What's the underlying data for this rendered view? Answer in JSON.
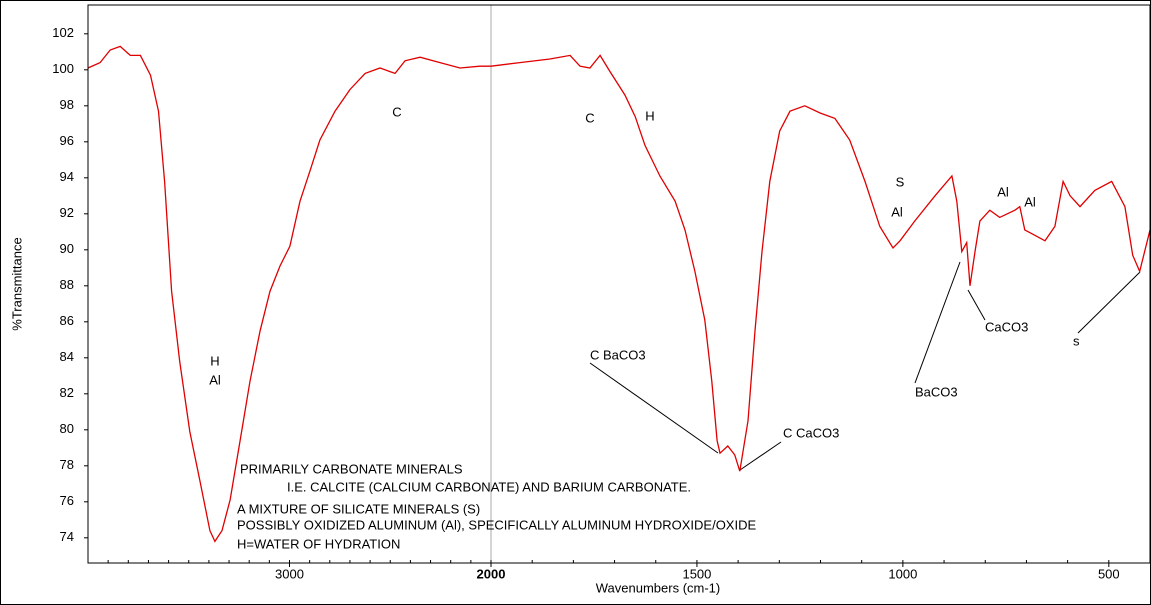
{
  "chart_data": {
    "type": "line",
    "x_label": "Wavenumbers (cm-1)",
    "y_label": "%Transmittance",
    "xlim": [
      4000,
      400
    ],
    "x_break": 2000,
    "xticks": [
      3000,
      2000,
      1500,
      1000,
      500
    ],
    "ylim": [
      72.6,
      103.6
    ],
    "yticks": [
      74,
      76,
      78,
      80,
      82,
      84,
      86,
      88,
      90,
      92,
      94,
      96,
      98,
      100,
      102
    ],
    "color": "#e00000",
    "x": [
      4000,
      3940,
      3890,
      3840,
      3790,
      3740,
      3690,
      3650,
      3620,
      3585,
      3545,
      3495,
      3445,
      3395,
      3370,
      3335,
      3295,
      3245,
      3196,
      3146,
      3097,
      3047,
      2998,
      2948,
      2898,
      2849,
      2774,
      2700,
      2625,
      2551,
      2501,
      2476,
      2427,
      2352,
      2253,
      2154,
      2055,
      2000,
      1930,
      1857,
      1808,
      1784,
      1760,
      1735,
      1711,
      1675,
      1650,
      1626,
      1590,
      1553,
      1529,
      1505,
      1481,
      1464,
      1451,
      1444,
      1425,
      1408,
      1396,
      1376,
      1359,
      1342,
      1323,
      1299,
      1274,
      1238,
      1201,
      1165,
      1129,
      1092,
      1056,
      1024,
      1007,
      971,
      922,
      881,
      869,
      857,
      845,
      837,
      825,
      813,
      789,
      765,
      728,
      716,
      704,
      679,
      655,
      631,
      611,
      594,
      570,
      534,
      493,
      461,
      442,
      425,
      400
    ],
    "values": [
      100.1,
      100.4,
      101.1,
      101.3,
      100.8,
      100.8,
      99.7,
      97.7,
      93.8,
      87.7,
      83.8,
      79.9,
      77.2,
      74.4,
      73.8,
      74.4,
      76.1,
      79.4,
      82.7,
      85.5,
      87.7,
      89.1,
      90.2,
      92.7,
      94.4,
      96.1,
      97.7,
      98.9,
      99.8,
      100.1,
      99.9,
      99.8,
      100.5,
      100.7,
      100.4,
      100.1,
      100.2,
      100.2,
      100.4,
      100.6,
      100.8,
      100.2,
      100.1,
      100.8,
      99.9,
      98.6,
      97.4,
      95.8,
      94.1,
      92.7,
      91.1,
      88.8,
      86.1,
      82.7,
      79.4,
      78.7,
      79.1,
      78.6,
      77.7,
      80.5,
      85.5,
      89.9,
      93.8,
      96.6,
      97.7,
      98.0,
      97.6,
      97.3,
      96.1,
      93.8,
      91.3,
      90.1,
      90.5,
      91.6,
      93.0,
      94.1,
      92.7,
      89.9,
      90.4,
      88.0,
      89.9,
      91.6,
      92.2,
      91.8,
      92.2,
      92.4,
      91.1,
      90.8,
      90.5,
      91.3,
      93.8,
      93.0,
      92.4,
      93.3,
      93.8,
      92.4,
      89.7,
      88.8,
      91.1
    ],
    "annotations": [
      "C",
      "C",
      "H",
      "S",
      "Al",
      "Al",
      "Al",
      "H",
      "Al",
      "C BaCO3",
      "C CaCO3",
      "BaCO3",
      "CaCO3",
      "s",
      "PRIMARILY CARBONATE MINERALS",
      "I.E. CALCITE (CALCIUM CARBONATE) AND BARIUM CARBONATE.",
      "A MIXTURE OF SILICATE MINERALS (S)",
      "POSSIBLY OXIDIZED ALUMINUM (Al), SPECIFICALLY ALUMINUM HYDROXIDE/OXIDE",
      "H=WATER OF HYDRATION"
    ]
  }
}
